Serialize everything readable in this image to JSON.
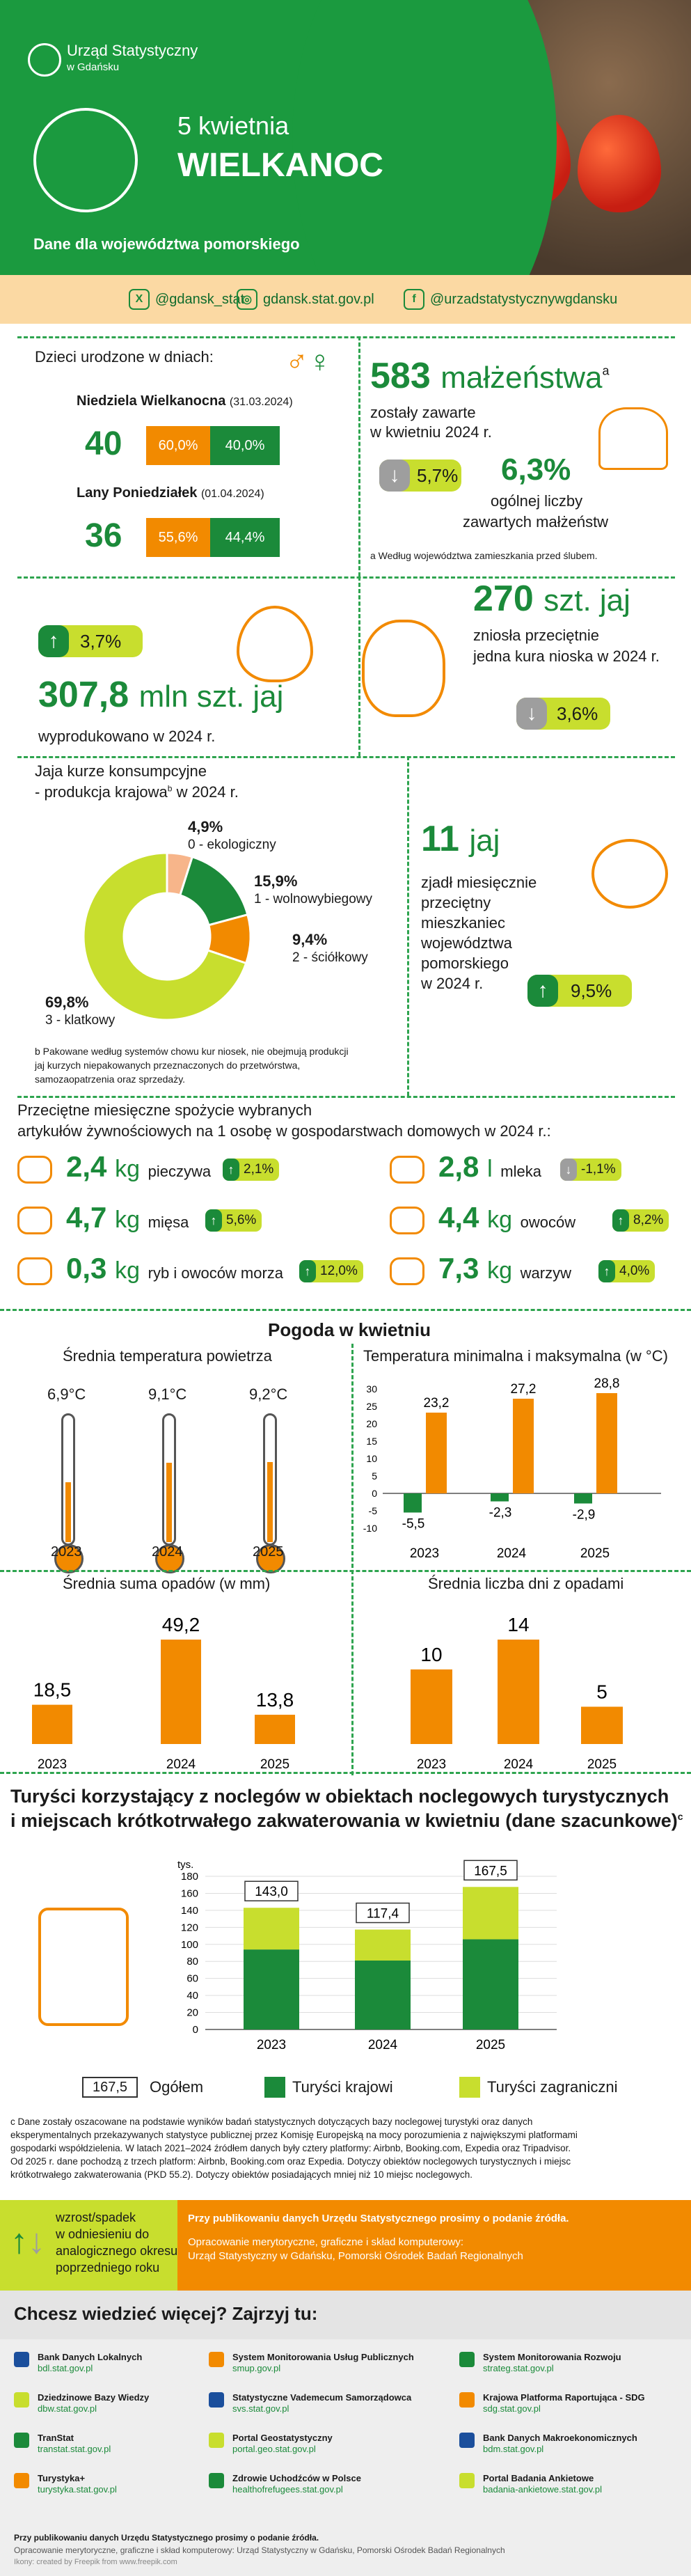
{
  "header": {
    "org_line1": "Urząd Statystyczny",
    "org_line2": "w Gdańsku",
    "date": "5 kwietnia",
    "title": "WIELKANOC",
    "subtitle": "Dane dla województwa pomorskiego"
  },
  "social": {
    "twitter": "@gdansk_stat",
    "web": "gdansk.stat.gov.pl",
    "facebook": "@urzadstatystycznywgdansku",
    "twitter_icon": "x-icon",
    "web_icon": "globe-icon",
    "facebook_icon": "f-icon"
  },
  "births": {
    "heading": "Dzieci urodzone w dniach:",
    "day1_name": "Niedziela Wielkanocna",
    "day1_date": "(31.03.2024)",
    "day1_total": "40",
    "day1_boys": "60,0%",
    "day1_girls": "40,0%",
    "day2_name": "Lany Poniedziałek",
    "day2_date": "(01.04.2024)",
    "day2_total": "36",
    "day2_boys": "55,6%",
    "day2_girls": "44,4%"
  },
  "marriages": {
    "number": "583",
    "unit": "małżeństwa",
    "sup": "a",
    "text1": "zostały zawarte",
    "text2": "w kwietniu 2024 r.",
    "change": "5,7%",
    "share": "6,3%",
    "share_text1": "ogólnej liczby",
    "share_text2": "zawartych małżeństw",
    "footnote": "a Według województwa zamieszkania przed ślubem."
  },
  "eggs_prod": {
    "change": "3,7%",
    "number": "307,8",
    "unit": "mln szt. jaj",
    "text": "wyprodukowano w 2024 r."
  },
  "hen": {
    "number": "270",
    "unit": "szt. jaj",
    "text1": "zniosła przeciętnie",
    "text2": "jedna kura nioska w 2024 r.",
    "change": "3,6%"
  },
  "donut": {
    "title1": "Jaja kurze konsumpcyjne",
    "title2": "- produkcja krajowa",
    "sup": "b",
    "title3": "w 2024 r.",
    "l0_val": "4,9%",
    "l0_txt": "0 - ekologiczny",
    "l1_val": "15,9%",
    "l1_txt": "1 - wolnowybiegowy",
    "l2_val": "9,4%",
    "l2_txt": "2 - ściółkowy",
    "l3_val": "69,8%",
    "l3_txt": "3 - klatkowy",
    "footnote1": "b Pakowane według systemów chowu kur niosek, nie obejmują produkcji",
    "footnote2": "jaj kurzych niepakowanych przeznaczonych do przetwórstwa,",
    "footnote3": "samozaopatrzenia oraz sprzedaży."
  },
  "eaten": {
    "number": "11",
    "unit": "jaj",
    "text1": "zjadł miesięcznie",
    "text2": "przeciętny",
    "text3": "mieszkaniec",
    "text4": "województwa",
    "text5": "pomorskiego",
    "text6": "w 2024 r.",
    "change": "9,5%"
  },
  "consumption": {
    "title1": "Przeciętne miesięczne spożycie wybranych",
    "title2": "artykułów żywnościowych na 1 osobę w gospodarstwach domowych w 2024 r.:",
    "items": [
      {
        "value": "2,4",
        "unit": "kg",
        "name": "pieczywa",
        "change": "2,1%",
        "icon": "bread-icon"
      },
      {
        "value": "4,7",
        "unit": "kg",
        "name": "mięsa",
        "change": "5,6%",
        "icon": "meat-icon"
      },
      {
        "value": "0,3",
        "unit": "kg",
        "name": "ryb i owoców morza",
        "change": "12,0%",
        "icon": "fish-icon"
      },
      {
        "value": "2,8",
        "unit": "l",
        "name": "mleka",
        "change": "-1,1%",
        "icon": "milk-icon"
      },
      {
        "value": "4,4",
        "unit": "kg",
        "name": "owoców",
        "change": "8,2%",
        "icon": "apple-icon"
      },
      {
        "value": "7,3",
        "unit": "kg",
        "name": "warzyw",
        "change": "4,0%",
        "icon": "carrot-icon"
      }
    ]
  },
  "weather": {
    "title": "Pogoda w kwietniu",
    "avg_title": "Średnia temperatura powietrza",
    "minmax_title": "Temperatura minimalna i maksymalna (w °C)",
    "rain_title": "Średnia suma opadów (w mm)",
    "days_title": "Średnia liczba dni z opadami"
  },
  "chart_data": [
    {
      "type": "bar",
      "title": "Średnia temperatura powietrza",
      "categories": [
        "2023",
        "2024",
        "2025"
      ],
      "values": [
        6.9,
        9.1,
        9.2
      ],
      "labels": [
        "6,9°C",
        "9,1°C",
        "9,2°C"
      ]
    },
    {
      "type": "bar",
      "title": "Temperatura minimalna i maksymalna (w °C)",
      "categories": [
        "2023",
        "2024",
        "2025"
      ],
      "series": [
        {
          "values": [
            -5.5,
            -2.3,
            -2.9
          ],
          "labels": [
            "-5,5",
            "-2,3",
            "-2,9"
          ],
          "color": "#1b8a3a"
        },
        {
          "values": [
            23.2,
            27.2,
            28.8
          ],
          "labels": [
            "23,2",
            "27,2",
            "28,8"
          ],
          "color": "#f28a00"
        }
      ],
      "ylim": [
        -10,
        30
      ],
      "yticks": [
        "30",
        "25",
        "20",
        "15",
        "10",
        "5",
        "0",
        "-5",
        "-10"
      ]
    },
    {
      "type": "bar",
      "title": "Średnia suma opadów (w mm)",
      "categories": [
        "2023",
        "2024",
        "2025"
      ],
      "values": [
        18.5,
        49.2,
        13.8
      ],
      "labels": [
        "18,5",
        "49,2",
        "13,8"
      ],
      "color": "#f28a00"
    },
    {
      "type": "bar",
      "title": "Średnia liczba dni z opadami",
      "categories": [
        "2023",
        "2024",
        "2025"
      ],
      "values": [
        10,
        14,
        5
      ],
      "labels": [
        "10",
        "14",
        "5"
      ],
      "color": "#f28a00"
    },
    {
      "type": "bar",
      "stacked": true,
      "title": "Turyści korzystający z noclegów w obiektach noclegowych turystycznych i miejscach krótkotrwałego zakwaterowania w kwietniu (dane szacunkowe)",
      "ylabel": "tys.",
      "categories": [
        "2023",
        "2024",
        "2025"
      ],
      "totals": [
        "143,0",
        "117,4",
        "167,5"
      ],
      "total_values": [
        143.0,
        117.4,
        167.5
      ],
      "series": [
        {
          "name": "Turyści krajowi",
          "values": [
            94,
            81,
            106
          ],
          "color": "#1b8a3a"
        },
        {
          "name": "Turyści zagraniczni",
          "values": [
            49,
            36.4,
            61.5
          ],
          "color": "#c8de2e"
        }
      ],
      "ylim": [
        0,
        180
      ],
      "yticks": [
        "180",
        "160",
        "140",
        "120",
        "100",
        "80",
        "60",
        "40",
        "20",
        "0"
      ]
    }
  ],
  "tourists": {
    "title1": "Turyści korzystający z noclegów w obiektach noclegowych turystycznych",
    "title2": "i miejscach krótkotrwałego zakwaterowania w kwietniu (dane szacunkowe)",
    "sup": "c",
    "ylabel": "tys.",
    "legend_total_val": "167,5",
    "legend_total": "Ogółem",
    "legend_dom": "Turyści krajowi",
    "legend_for": "Turyści zagraniczni",
    "note1": "c Dane zostały oszacowane na podstawie wyników badań statystycznych dotyczących bazy noclegowej turystyki oraz danych",
    "note2": "eksperymentalnych przekazywanych statystyce publicznej przez Komisję Europejską na mocy porozumienia z największymi platformami",
    "note3": "gospodarki współdzielenia. W latach 2021–2024 źródłem danych były cztery platformy: Airbnb, Booking.com, Expedia oraz Tripadvisor.",
    "note4": "Od 2025 r. dane pochodzą z trzech platform: Airbnb, Booking.com oraz Expedia. Dotyczy obiektów noclegowych turystycznych i miejsc",
    "note5": "krótkotrwałego zakwaterowania (PKD 55.2). Dotyczy obiektów posiadających mniej niż 10 miejsc noclegowych."
  },
  "legend": {
    "arrow_text1": "wzrost/spadek",
    "arrow_text2": "w odniesieniu do",
    "arrow_text3": "analogicznego okresu",
    "arrow_text4": "poprzedniego roku",
    "notice": "Przy publikowaniu danych Urzędu Statystycznego prosimy o podanie źródła.",
    "credit1": "Opracowanie merytoryczne, graficzne i skład komputerowy:",
    "credit2": "Urząd Statystyczny w Gdańsku, Pomorski Ośrodek Badań Regionalnych"
  },
  "more": {
    "title": "Chcesz wiedzieć więcej? Zajrzyj tu:",
    "links": [
      {
        "name": "Bank Danych Lokalnych",
        "url": "bdl.stat.gov.pl"
      },
      {
        "name": "System Monitorowania Usług Publicznych",
        "url": "smup.gov.pl"
      },
      {
        "name": "System Monitorowania Rozwoju",
        "url": "strateg.stat.gov.pl"
      },
      {
        "name": "Dziedzinowe Bazy Wiedzy",
        "url": "dbw.stat.gov.pl"
      },
      {
        "name": "Statystyczne Vademecum Samorządowca",
        "url": "svs.stat.gov.pl"
      },
      {
        "name": "Krajowa Platforma Raportująca - SDG",
        "url": "sdg.stat.gov.pl"
      },
      {
        "name": "TranStat",
        "url": "transtat.stat.gov.pl"
      },
      {
        "name": "Portal Geostatystyczny",
        "url": "portal.geo.stat.gov.pl"
      },
      {
        "name": "Bank Danych Makroekonomicznych",
        "url": "bdm.stat.gov.pl"
      },
      {
        "name": "Turystyka+",
        "url": "turystyka.stat.gov.pl"
      },
      {
        "name": "Zdrowie Uchodźców w Polsce",
        "url": "healthofrefugees.stat.gov.pl"
      },
      {
        "name": "Portal Badania Ankietowe",
        "url": "badania-ankietowe.stat.gov.pl"
      }
    ],
    "foot1": "Przy publikowaniu danych Urzędu Statystycznego prosimy o podanie źródła.",
    "foot2": "Opracowanie merytoryczne, graficzne i skład komputerowy: Urząd Statystyczny w Gdańsku, Pomorski Ośrodek Badań Regionalnych",
    "foot3": "Ikony: created by Freepik from www.freepik.com"
  }
}
